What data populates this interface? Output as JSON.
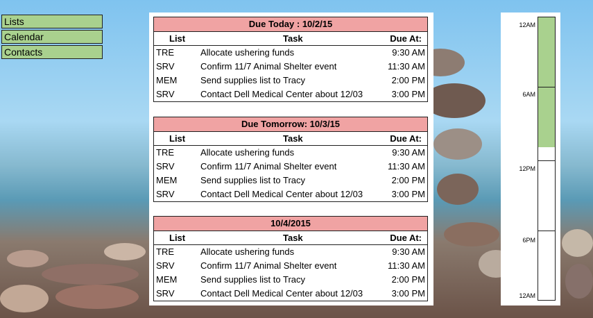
{
  "nav": {
    "items": [
      {
        "label": "Lists"
      },
      {
        "label": "Calendar"
      },
      {
        "label": "Contacts"
      }
    ]
  },
  "columns": {
    "list": "List",
    "task": "Task",
    "due": "Due At:"
  },
  "days": [
    {
      "title": "Due Today : 10/2/15",
      "rows": [
        {
          "list": "TRE",
          "task": "Allocate ushering funds",
          "due": "9:30 AM"
        },
        {
          "list": "SRV",
          "task": "Confirm 11/7 Animal Shelter event",
          "due": "11:30 AM"
        },
        {
          "list": "MEM",
          "task": "Send supplies list to Tracy",
          "due": "2:00 PM"
        },
        {
          "list": "SRV",
          "task": "Contact Dell Medical Center about 12/03",
          "due": "3:00 PM"
        }
      ]
    },
    {
      "title": "Due Tomorrow: 10/3/15",
      "rows": [
        {
          "list": "TRE",
          "task": "Allocate ushering funds",
          "due": "9:30 AM"
        },
        {
          "list": "SRV",
          "task": "Confirm 11/7 Animal Shelter event",
          "due": "11:30 AM"
        },
        {
          "list": "MEM",
          "task": "Send supplies list to Tracy",
          "due": "2:00 PM"
        },
        {
          "list": "SRV",
          "task": "Contact Dell Medical Center about 12/03",
          "due": "3:00 PM"
        }
      ]
    },
    {
      "title": "10/4/2015",
      "rows": [
        {
          "list": "TRE",
          "task": "Allocate ushering funds",
          "due": "9:30 AM"
        },
        {
          "list": "SRV",
          "task": "Confirm 11/7 Animal Shelter event",
          "due": "11:30 AM"
        },
        {
          "list": "MEM",
          "task": "Send supplies list to Tracy",
          "due": "2:00 PM"
        },
        {
          "list": "SRV",
          "task": "Contact Dell Medical Center about 12/03",
          "due": "3:00 PM"
        }
      ]
    }
  ],
  "timeline": {
    "labels": [
      "12AM",
      "6AM",
      "12PM",
      "6PM",
      "12AM"
    ],
    "filled_fraction": 0.46,
    "colors": {
      "fill": "#a9d18e",
      "header": "#f0a3a3"
    }
  }
}
